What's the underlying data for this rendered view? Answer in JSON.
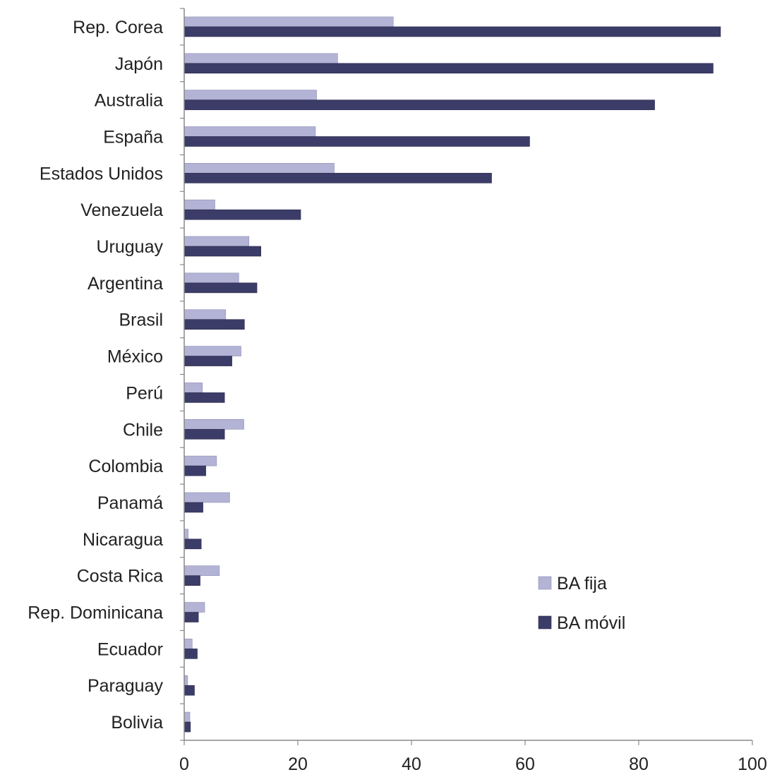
{
  "chart_data": {
    "type": "bar",
    "orientation": "horizontal",
    "categories": [
      "Rep. Corea",
      "Japón",
      "Australia",
      "España",
      "Estados Unidos",
      "Venezuela",
      "Uruguay",
      "Argentina",
      "Brasil",
      "México",
      "Perú",
      "Chile",
      "Colombia",
      "Panamá",
      "Nicaragua",
      "Costa Rica",
      "Rep. Dominicana",
      "Ecuador",
      "Paraguay",
      "Bolivia"
    ],
    "series": [
      {
        "name": "BA fija",
        "color": "#b3b3d6",
        "values": [
          36.8,
          27.0,
          23.3,
          23.1,
          26.4,
          5.4,
          11.4,
          9.6,
          7.3,
          10.0,
          3.2,
          10.5,
          5.7,
          8.0,
          0.7,
          6.2,
          3.6,
          1.4,
          0.6,
          1.0
        ]
      },
      {
        "name": "BA móvil",
        "color": "#3c3c68",
        "values": [
          94.4,
          93.1,
          82.8,
          60.8,
          54.1,
          20.5,
          13.5,
          12.8,
          10.6,
          8.4,
          7.1,
          7.1,
          3.8,
          3.3,
          3.0,
          2.8,
          2.5,
          2.3,
          1.8,
          1.1
        ]
      }
    ],
    "xlim": [
      0,
      100
    ],
    "xticks": [
      "0",
      "20",
      "40",
      "60",
      "80",
      "100"
    ],
    "grid": false,
    "legend_position": "bottom-right"
  }
}
